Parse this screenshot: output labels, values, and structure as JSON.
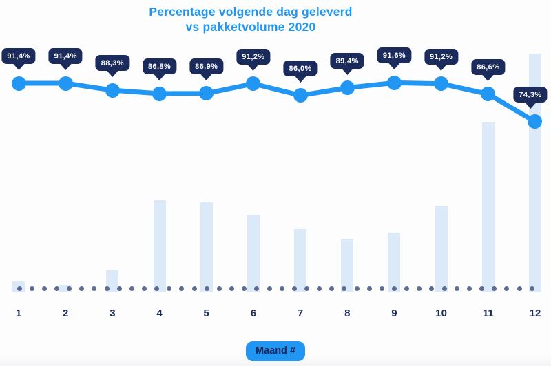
{
  "title": {
    "line1": "Percentage volgende dag geleverd",
    "line2": "vs pakketvolume 2020"
  },
  "x_axis": {
    "title": "Maand #",
    "ticks": [
      "1",
      "2",
      "3",
      "4",
      "5",
      "6",
      "7",
      "8",
      "9",
      "10",
      "11",
      "12"
    ]
  },
  "colors": {
    "accent_blue": "#2196f3",
    "badge_navy": "#1b2c5c",
    "bar_fill": "#dbe9f8",
    "baseline_dot": "#5d6d92",
    "axis_text_navy": "#1b2c5c",
    "badge_text": "#ffffff",
    "background": "#fdfdfd"
  },
  "chart_data": {
    "type": "line+bar",
    "title": "Percentage volgende dag geleverd vs pakketvolume 2020",
    "categories": [
      1,
      2,
      3,
      4,
      5,
      6,
      7,
      8,
      9,
      10,
      11,
      12
    ],
    "xlabel": "Maand #",
    "legend": "none",
    "grid": "off",
    "y_axis_labels": "none (values shown as point labels only)",
    "baseline_style": "dotted",
    "series": [
      {
        "name": "Percentage volgende dag geleverd",
        "type": "line",
        "unit": "percent",
        "values": [
          91.4,
          91.4,
          88.3,
          86.8,
          86.9,
          91.2,
          86.0,
          89.4,
          91.6,
          91.2,
          86.6,
          74.3
        ],
        "point_labels": [
          "91,4%",
          "91,4%",
          "88,3%",
          "86,8%",
          "86,9%",
          "91,2%",
          "86,0%",
          "89,4%",
          "91,6%",
          "91,2%",
          "86,6%",
          "74,3%"
        ]
      },
      {
        "name": "Pakketvolume 2020",
        "type": "bar",
        "unit": "relative volume (no numeric axis shown; normalized, month 12 = 100)",
        "values": [
          4.6,
          3.2,
          9.2,
          38.6,
          37.8,
          32.6,
          26.5,
          22.5,
          25.1,
          36.3,
          71.2,
          100
        ]
      }
    ]
  }
}
